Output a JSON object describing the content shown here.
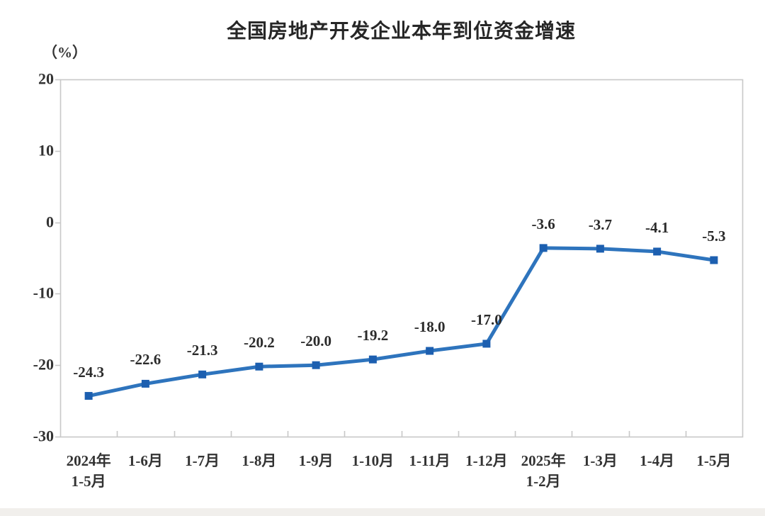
{
  "chart_data": {
    "type": "line",
    "title": "全国房地产开发企业本年到位资金增速",
    "unit_label": "（%）",
    "categories": [
      "2024年\n1-5月",
      "1-6月",
      "1-7月",
      "1-8月",
      "1-9月",
      "1-10月",
      "1-11月",
      "1-12月",
      "2025年\n1-2月",
      "1-3月",
      "1-4月",
      "1-5月"
    ],
    "series": [
      {
        "name": "本年到位资金增速",
        "values": [
          -24.3,
          -22.6,
          -21.3,
          -20.2,
          -20.0,
          -19.2,
          -18.0,
          -17.0,
          -3.6,
          -3.7,
          -4.1,
          -5.3
        ],
        "data_labels": [
          "-24.3",
          "-22.6",
          "-21.3",
          "-20.2",
          "-20.0",
          "-19.2",
          "-18.0",
          "-17.0",
          "-3.6",
          "-3.7",
          "-4.1",
          "-5.3"
        ]
      }
    ],
    "ylim": [
      -30,
      20
    ],
    "yticks": [
      20,
      10,
      0,
      -10,
      -20,
      -30
    ],
    "ytick_interval": 10,
    "grid": false,
    "legend_position": "none",
    "colors": {
      "line": "#2e74bd",
      "marker": "#1c5fb0",
      "text": "#2b2b2b",
      "axis": "#c8c8c8"
    }
  }
}
